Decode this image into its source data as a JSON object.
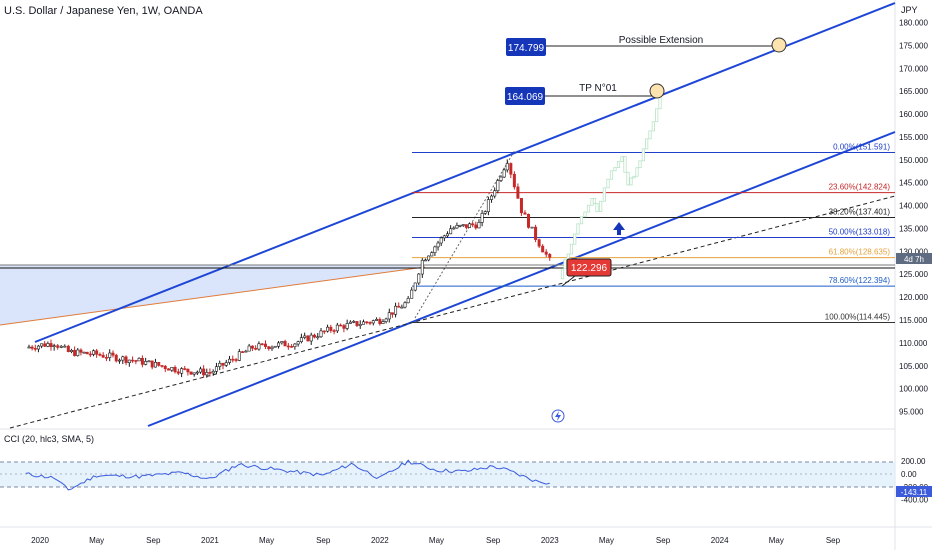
{
  "header": {
    "symbol_title": "U.S. Dollar / Japanese Yen, 1W, OANDA"
  },
  "price_axis": {
    "currency": "JPY",
    "ticks": [
      "180.000",
      "175.000",
      "170.000",
      "165.000",
      "160.000",
      "155.000",
      "150.000",
      "145.000",
      "140.000",
      "135.000",
      "130.000",
      "125.000",
      "120.000",
      "115.000",
      "110.000",
      "105.000",
      "100.000",
      "95.000"
    ],
    "countdown_label": "4d 7h",
    "current_price_label": "122.296"
  },
  "time_axis": {
    "ticks": [
      "2020",
      "May",
      "Sep",
      "2021",
      "May",
      "Sep",
      "2022",
      "May",
      "Sep",
      "2023",
      "May",
      "Sep",
      "2024",
      "May",
      "Sep"
    ]
  },
  "annotations": {
    "target_1_label": "164.069",
    "target_1_text": "TP N°01",
    "target_2_label": "174.799",
    "target_2_text": "Possible Extension",
    "current_price_callout": "122.296"
  },
  "fib_levels": [
    {
      "label": "0.00%(151.591)",
      "price": 151.591,
      "color": "#1f3ec9"
    },
    {
      "label": "23.60%(142.824)",
      "price": 142.824,
      "color": "#c62828"
    },
    {
      "label": "38.20%(137.401)",
      "price": 137.401,
      "color": "#222222"
    },
    {
      "label": "50.00%(133.018)",
      "price": 133.018,
      "color": "#1f3ec9"
    },
    {
      "label": "61.80%(128.635)",
      "price": 128.635,
      "color": "#e6a23c"
    },
    {
      "label": "78.60%(122.394)",
      "price": 122.394,
      "color": "#1f5fc9"
    },
    {
      "label": "100.00%(114.445)",
      "price": 114.445,
      "color": "#333333"
    }
  ],
  "indicator": {
    "title": "CCI (20, hlc3, SMA, 5)",
    "value_label": "-143.11",
    "ticks": [
      "200.00",
      "0.00",
      "-200.00",
      "-400.00"
    ]
  },
  "chart_data": {
    "type": "line",
    "title": "U.S. Dollar / Japanese Yen, 1W, OANDA",
    "x_range": [
      "2019-11",
      "2024-11"
    ],
    "ylim": [
      90,
      182
    ],
    "y_unit": "JPY",
    "series": [
      {
        "values_x": [
          "2019-12",
          "2020-02",
          "2020-03",
          "2020-05",
          "2020-08",
          "2020-11",
          "2021-01",
          "2021-04",
          "2021-07",
          "2021-10",
          "2022-01",
          "2022-03",
          "2022-04",
          "2022-06",
          "2022-08",
          "2022-10",
          "2022-11",
          "2022-12",
          "2023-01"
        ],
        "values_y": [
          109,
          110,
          108,
          107.5,
          106,
          104,
          103.5,
          109,
          110,
          113.5,
          115,
          119,
          128,
          135,
          136,
          150,
          139,
          133,
          128
        ]
      }
    ],
    "cci": {
      "ylim": [
        -420,
        240
      ],
      "values_x": [
        "2019-12",
        "2020-02",
        "2020-03",
        "2020-05",
        "2020-08",
        "2020-11",
        "2021-01",
        "2021-03",
        "2021-06",
        "2021-09",
        "2021-11",
        "2022-01",
        "2022-03",
        "2022-05",
        "2022-07",
        "2022-09",
        "2022-10",
        "2022-12",
        "2023-01"
      ],
      "values_y": [
        0,
        -60,
        -250,
        -20,
        -40,
        20,
        -80,
        150,
        60,
        -20,
        160,
        -70,
        200,
        60,
        40,
        120,
        60,
        -110,
        -143
      ]
    }
  }
}
